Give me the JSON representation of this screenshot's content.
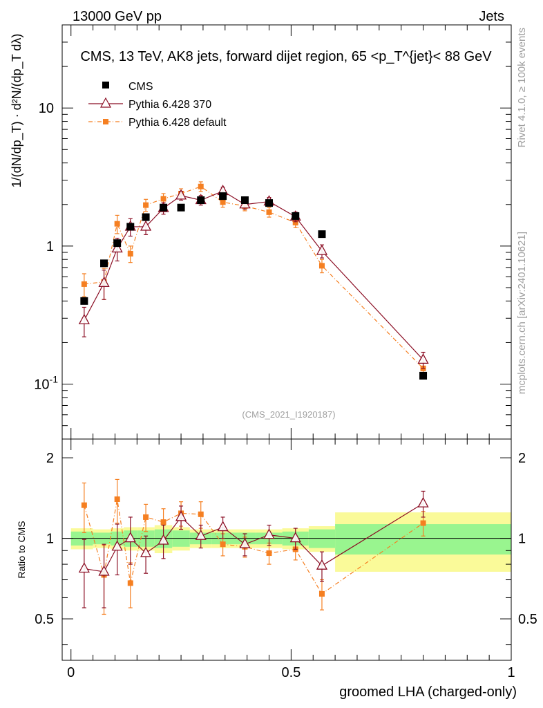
{
  "header": {
    "left": "13000 GeV pp",
    "right": "Jets"
  },
  "side_labels": {
    "rivet": "Rivet 4.1.0, ≥ 100k events",
    "mcplots": "mcplots.cern.ch [arXiv:2401.10621]"
  },
  "chart_data": [
    {
      "type": "scatter",
      "panel": "main",
      "title": "CMS, 13 TeV, AK8 jets, forward dijet region, 65 <p_T^{jet}< 88 GeV",
      "analysis_tag": "(CMS_2021_I1920187)",
      "ylabel": "1/(dN/dp_T) · d²N/(dp_T dλ)",
      "xlabel": "groomed LHA (charged-only)",
      "yscale": "log",
      "ylim": [
        0.04,
        40
      ],
      "xlim": [
        -0.02,
        1.0
      ],
      "y_tick_labels": [
        "10^-1",
        "1",
        "10"
      ],
      "legend_position": "top-left",
      "x_bins": [
        [
          0.0,
          0.05
        ],
        [
          0.05,
          0.09
        ],
        [
          0.09,
          0.12
        ],
        [
          0.12,
          0.15
        ],
        [
          0.15,
          0.19
        ],
        [
          0.19,
          0.23
        ],
        [
          0.23,
          0.27
        ],
        [
          0.27,
          0.32
        ],
        [
          0.32,
          0.37
        ],
        [
          0.37,
          0.42
        ],
        [
          0.42,
          0.48
        ],
        [
          0.48,
          0.54
        ],
        [
          0.54,
          0.6
        ],
        [
          0.6,
          1.0
        ]
      ],
      "x": [
        0.03,
        0.075,
        0.105,
        0.135,
        0.17,
        0.21,
        0.25,
        0.295,
        0.345,
        0.395,
        0.45,
        0.51,
        0.57,
        0.8
      ],
      "series": [
        {
          "name": "CMS",
          "marker": "square",
          "color": "#000000",
          "values": [
            0.4,
            0.75,
            1.05,
            1.38,
            1.62,
            1.9,
            1.9,
            2.15,
            2.3,
            2.15,
            2.05,
            1.65,
            1.22,
            0.115
          ],
          "errors": [
            0.02,
            0.03,
            0.05,
            0.06,
            0.06,
            0.07,
            0.07,
            0.08,
            0.08,
            0.08,
            0.08,
            0.07,
            0.05,
            0.006
          ]
        },
        {
          "name": "Pythia 6.428 370",
          "marker": "triangle-open",
          "color": "#8b0e24",
          "linestyle": "solid",
          "values": [
            0.29,
            0.54,
            0.96,
            1.38,
            1.38,
            1.88,
            2.32,
            2.15,
            2.5,
            2.0,
            2.1,
            1.63,
            0.92,
            0.15
          ],
          "errors": [
            0.07,
            0.13,
            0.18,
            0.2,
            0.17,
            0.18,
            0.17,
            0.17,
            0.17,
            0.15,
            0.15,
            0.13,
            0.1,
            0.02
          ]
        },
        {
          "name": "Pythia 6.428 default",
          "marker": "square-small",
          "color": "#f57f21",
          "linestyle": "dashdot",
          "values": [
            0.53,
            0.55,
            1.45,
            0.88,
            1.98,
            2.2,
            2.4,
            2.7,
            2.08,
            1.95,
            1.76,
            1.48,
            0.72,
            0.13
          ],
          "errors": [
            0.1,
            0.14,
            0.22,
            0.12,
            0.2,
            0.2,
            0.2,
            0.22,
            0.17,
            0.15,
            0.14,
            0.12,
            0.08,
            0.015
          ]
        }
      ]
    },
    {
      "type": "scatter",
      "panel": "ratio",
      "ylabel": "Ratio to CMS",
      "xlabel": "groomed LHA (charged-only)",
      "ylim": [
        0.35,
        2.35
      ],
      "xlim": [
        -0.02,
        1.0
      ],
      "y_ticks": [
        0.5,
        1,
        2
      ],
      "x_ticks": [
        0,
        0.5,
        1
      ],
      "reference_line": 1,
      "bands": {
        "stat_color": "#99f58f",
        "total_color": "#fafa99",
        "green_half_widths": [
          0.06,
          0.05,
          0.06,
          0.07,
          0.07,
          0.08,
          0.07,
          0.05,
          0.05,
          0.05,
          0.05,
          0.06,
          0.08,
          0.13
        ],
        "yellow_half_widths": [
          0.09,
          0.08,
          0.09,
          0.1,
          0.1,
          0.12,
          0.1,
          0.08,
          0.08,
          0.08,
          0.08,
          0.09,
          0.11,
          0.25
        ]
      },
      "series": [
        {
          "name": "Pythia 6.428 370",
          "values": [
            0.77,
            0.75,
            0.93,
            1.0,
            0.88,
            0.98,
            1.2,
            1.02,
            1.1,
            0.95,
            1.03,
            1.0,
            0.79,
            1.35
          ],
          "errors": [
            0.22,
            0.2,
            0.2,
            0.2,
            0.14,
            0.14,
            0.12,
            0.1,
            0.1,
            0.09,
            0.09,
            0.09,
            0.1,
            0.15
          ]
        },
        {
          "name": "Pythia 6.428 default",
          "values": [
            1.33,
            0.73,
            1.4,
            0.68,
            1.2,
            1.15,
            1.24,
            1.23,
            0.95,
            0.93,
            0.88,
            0.91,
            0.62,
            1.14
          ],
          "errors": [
            0.28,
            0.21,
            0.26,
            0.13,
            0.14,
            0.14,
            0.13,
            0.14,
            0.09,
            0.08,
            0.08,
            0.08,
            0.08,
            0.12
          ]
        }
      ]
    }
  ]
}
